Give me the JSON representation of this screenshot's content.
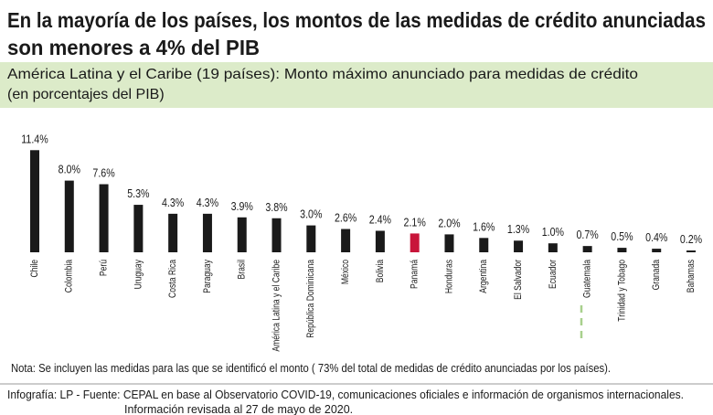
{
  "chart_data": {
    "type": "bar",
    "title_lines": [
      "En la mayoría de los países, los montos de las medidas de crédito anunciadas",
      "son menores a 4% del PIB"
    ],
    "subtitle_lines": [
      "América Latina y  el Caribe (19 países): Monto máximo anunciado para medidas de crédito",
      "(en porcentajes del PIB)"
    ],
    "categories": [
      "Chile",
      "Colombia",
      "Perú",
      "Uruguay",
      "Costa Rica",
      "Paraguay",
      "Brasil",
      "América Latina y el Caribe",
      "República Dominicana",
      "México",
      "Bolivia",
      "Panamá",
      "Honduras",
      "Argentina",
      "El Salvador",
      "Ecuador",
      "Guatemala",
      "Trinidad y Tobago",
      "Granada",
      "Bahamas"
    ],
    "values": [
      11.4,
      8.0,
      7.6,
      5.3,
      4.3,
      4.3,
      3.9,
      3.8,
      3.0,
      2.6,
      2.4,
      2.1,
      2.0,
      1.6,
      1.3,
      1.0,
      0.7,
      0.5,
      0.4,
      0.2
    ],
    "value_labels": [
      "11.4%",
      "8.0%",
      "7.6%",
      "5.3%",
      "4.3%",
      "4.3%",
      "3.9%",
      "3.8%",
      "3.0%",
      "2.6%",
      "2.4%",
      "2.1%",
      "2.0%",
      "1.6%",
      "1.3%",
      "1.0%",
      "0.7%",
      "0.5%",
      "0.4%",
      "0.2%"
    ],
    "colors": [
      "#1a1a1a",
      "#1a1a1a",
      "#1a1a1a",
      "#1a1a1a",
      "#1a1a1a",
      "#1a1a1a",
      "#1a1a1a",
      "#1a1a1a",
      "#1a1a1a",
      "#1a1a1a",
      "#1a1a1a",
      "#c8153a",
      "#1a1a1a",
      "#1a1a1a",
      "#1a1a1a",
      "#1a1a1a",
      "#1a1a1a",
      "#1a1a1a",
      "#1a1a1a",
      "#1a1a1a"
    ],
    "note": "Nota:  Se incluyen las medidas para las que se identificó el monto ( 73% del total de medidas de crédito anunciadas por los países).",
    "footer_lines": [
      "Infografía: LP - Fuente: CEPAL en base al Observatorio COVID-19, comunicaciones oficiales e información  de organismos internacionales.",
      "Información  revisada al 27 de mayo de 2020."
    ]
  }
}
